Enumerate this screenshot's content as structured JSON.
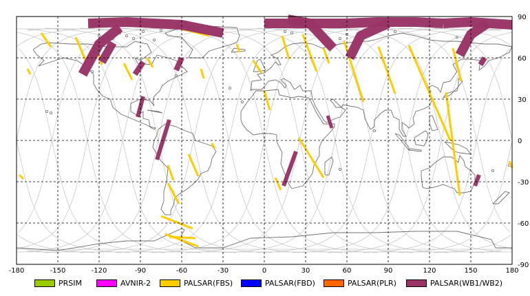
{
  "chart_data": {
    "type": "map",
    "projection": "equirectangular",
    "xlim": [
      -180,
      180
    ],
    "ylim": [
      -90,
      90
    ],
    "grid": true,
    "x_ticks": [
      "-180",
      "-150",
      "-120",
      "-90",
      "-60",
      "-30",
      "0",
      "30",
      "60",
      "90",
      "120",
      "150",
      "180"
    ],
    "y_ticks": [
      "90",
      "60",
      "30",
      "0",
      "-30",
      "-60",
      "-90"
    ],
    "legend": [
      {
        "label": "PRSIM",
        "color": "#99cc00"
      },
      {
        "label": "AVNIR-2",
        "color": "#ff00ff"
      },
      {
        "label": "PALSAR(FBS)",
        "color": "#ffcc00"
      },
      {
        "label": "PALSAR(FBD)",
        "color": "#0000ff"
      },
      {
        "label": "PALSAR(PLR)",
        "color": "#ff6600"
      },
      {
        "label": "PALSAR(WB1/WB2)",
        "color": "#993366"
      }
    ],
    "wb_strips": [
      {
        "lon": [
          -128,
          -100,
          -60,
          -30
        ],
        "lat": [
          85,
          86,
          84,
          78
        ],
        "w": 14
      },
      {
        "lon": [
          -132,
          -120,
          -105
        ],
        "lat": [
          48,
          70,
          82
        ],
        "w": 14
      },
      {
        "lon": [
          -110,
          -118
        ],
        "lat": [
          71,
          57
        ],
        "w": 12
      },
      {
        "lon": [
          -88,
          -94
        ],
        "lat": [
          57,
          48
        ],
        "w": 8
      },
      {
        "lon": [
          -60,
          -64
        ],
        "lat": [
          60,
          51
        ],
        "w": 8
      },
      {
        "lon": [
          -88,
          -92
        ],
        "lat": [
          32,
          17
        ],
        "w": 6
      },
      {
        "lon": [
          -69,
          -78
        ],
        "lat": [
          15,
          -14
        ],
        "w": 6
      },
      {
        "lon": [
          0,
          40,
          60
        ],
        "lat": [
          85,
          85,
          85
        ],
        "w": 14
      },
      {
        "lon": [
          60,
          82,
          110,
          130
        ],
        "lat": [
          85,
          86,
          86,
          85
        ],
        "w": 14
      },
      {
        "lon": [
          130,
          150,
          180
        ],
        "lat": [
          85,
          86,
          84
        ],
        "w": 14
      },
      {
        "lon": [
          142,
          150,
          162
        ],
        "lat": [
          62,
          77,
          85
        ],
        "w": 14
      },
      {
        "lon": [
          62,
          70,
          90
        ],
        "lat": [
          60,
          76,
          85
        ],
        "w": 14
      },
      {
        "lon": [
          17,
          33,
          50
        ],
        "lat": [
          88,
          85,
          67
        ],
        "w": 14
      },
      {
        "lon": [
          157,
          160
        ],
        "lat": [
          55,
          60
        ],
        "w": 8
      },
      {
        "lon": [
          46,
          49
        ],
        "lat": [
          18,
          9
        ],
        "w": 5
      },
      {
        "lon": [
          23,
          14
        ],
        "lat": [
          -8,
          -33
        ],
        "w": 6
      },
      {
        "lon": [
          156,
          153
        ],
        "lat": [
          -25,
          -33
        ],
        "w": 6
      }
    ],
    "fbs_strips": [
      {
        "lon": [
          -162,
          -155
        ],
        "lat": [
          78,
          68
        ]
      },
      {
        "lon": [
          -137,
          -128
        ],
        "lat": [
          75,
          54
        ]
      },
      {
        "lon": [
          -123,
          -118
        ],
        "lat": [
          70,
          55
        ]
      },
      {
        "lon": [
          -102,
          -96
        ],
        "lat": [
          56,
          44
        ]
      },
      {
        "lon": [
          -85,
          -81
        ],
        "lat": [
          60,
          53
        ]
      },
      {
        "lon": [
          -46,
          -44
        ],
        "lat": [
          52,
          45
        ]
      },
      {
        "lon": [
          -122,
          -78
        ],
        "lat": [
          88,
          84
        ]
      },
      {
        "lon": [
          -80,
          -40
        ],
        "lat": [
          86,
          76
        ]
      },
      {
        "lon": [
          -70,
          -62
        ],
        "lat": [
          -31,
          -46
        ]
      },
      {
        "lon": [
          -75,
          -52
        ],
        "lat": [
          -55,
          -64
        ]
      },
      {
        "lon": [
          -72,
          -48
        ],
        "lat": [
          -68,
          -77
        ]
      },
      {
        "lon": [
          -69,
          -50
        ],
        "lat": [
          -70,
          -71
        ]
      },
      {
        "lon": [
          -55,
          -48
        ],
        "lat": [
          -10,
          -26
        ]
      },
      {
        "lon": [
          -70,
          -66
        ],
        "lat": [
          -18,
          -29
        ]
      },
      {
        "lon": [
          -67,
          -64
        ],
        "lat": [
          -36,
          -43
        ]
      },
      {
        "lon": [
          -38,
          -36
        ],
        "lat": [
          -2,
          -6
        ]
      },
      {
        "lon": [
          -20,
          -18
        ],
        "lat": [
          70,
          64
        ]
      },
      {
        "lon": [
          -8,
          -2
        ],
        "lat": [
          58,
          49
        ]
      },
      {
        "lon": [
          0,
          4
        ],
        "lat": [
          36,
          22
        ]
      },
      {
        "lon": [
          8,
          12
        ],
        "lat": [
          -27,
          -36
        ]
      },
      {
        "lon": [
          13,
          18
        ],
        "lat": [
          76,
          59
        ]
      },
      {
        "lon": [
          28,
          38
        ],
        "lat": [
          77,
          50
        ]
      },
      {
        "lon": [
          43,
          47
        ],
        "lat": [
          67,
          56
        ]
      },
      {
        "lon": [
          25,
          43
        ],
        "lat": [
          2,
          -27
        ]
      },
      {
        "lon": [
          58,
          72
        ],
        "lat": [
          72,
          28
        ]
      },
      {
        "lon": [
          83,
          95
        ],
        "lat": [
          68,
          34
        ]
      },
      {
        "lon": [
          105,
          135
        ],
        "lat": [
          69,
          0
        ]
      },
      {
        "lon": [
          132,
          142
        ],
        "lat": [
          35,
          -40
        ]
      },
      {
        "lon": [
          137,
          143
        ],
        "lat": [
          67,
          43
        ]
      },
      {
        "lon": [
          178,
          180
        ],
        "lat": [
          -15,
          -20
        ]
      },
      {
        "lon": [
          -178,
          -175
        ],
        "lat": [
          -25,
          -28
        ]
      },
      {
        "lon": [
          -172,
          -170
        ],
        "lat": [
          52,
          48
        ]
      }
    ]
  }
}
